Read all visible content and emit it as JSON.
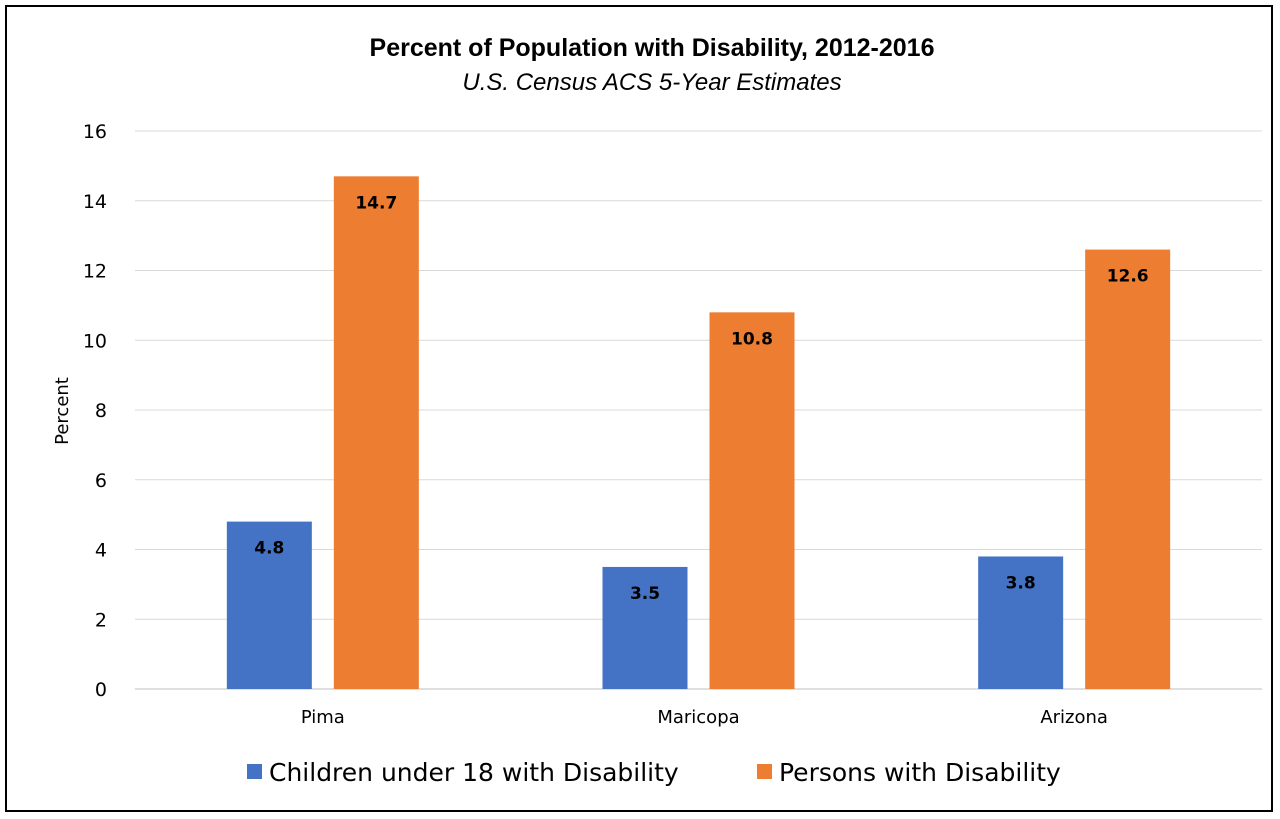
{
  "chart_data": {
    "type": "bar",
    "title": "Percent of Population with Disability, 2012-2016",
    "subtitle": "U.S. Census ACS 5-Year Estimates",
    "xlabel": "",
    "ylabel": "Percent",
    "ylim": [
      0,
      16
    ],
    "yticks": [
      0,
      2,
      4,
      6,
      8,
      10,
      12,
      14,
      16
    ],
    "categories": [
      "Pima",
      "Maricopa",
      "Arizona"
    ],
    "series": [
      {
        "name": "Children under 18 with Disability",
        "values": [
          4.8,
          3.5,
          3.8
        ],
        "color": "#4472c4"
      },
      {
        "name": "Persons with Disability",
        "values": [
          14.7,
          10.8,
          12.6
        ],
        "color": "#ed7d31"
      }
    ],
    "grid": true,
    "legend": "bottom",
    "data_labels": [
      "4.8",
      "3.5",
      "3.8",
      "14.7",
      "10.8",
      "12.6"
    ]
  }
}
